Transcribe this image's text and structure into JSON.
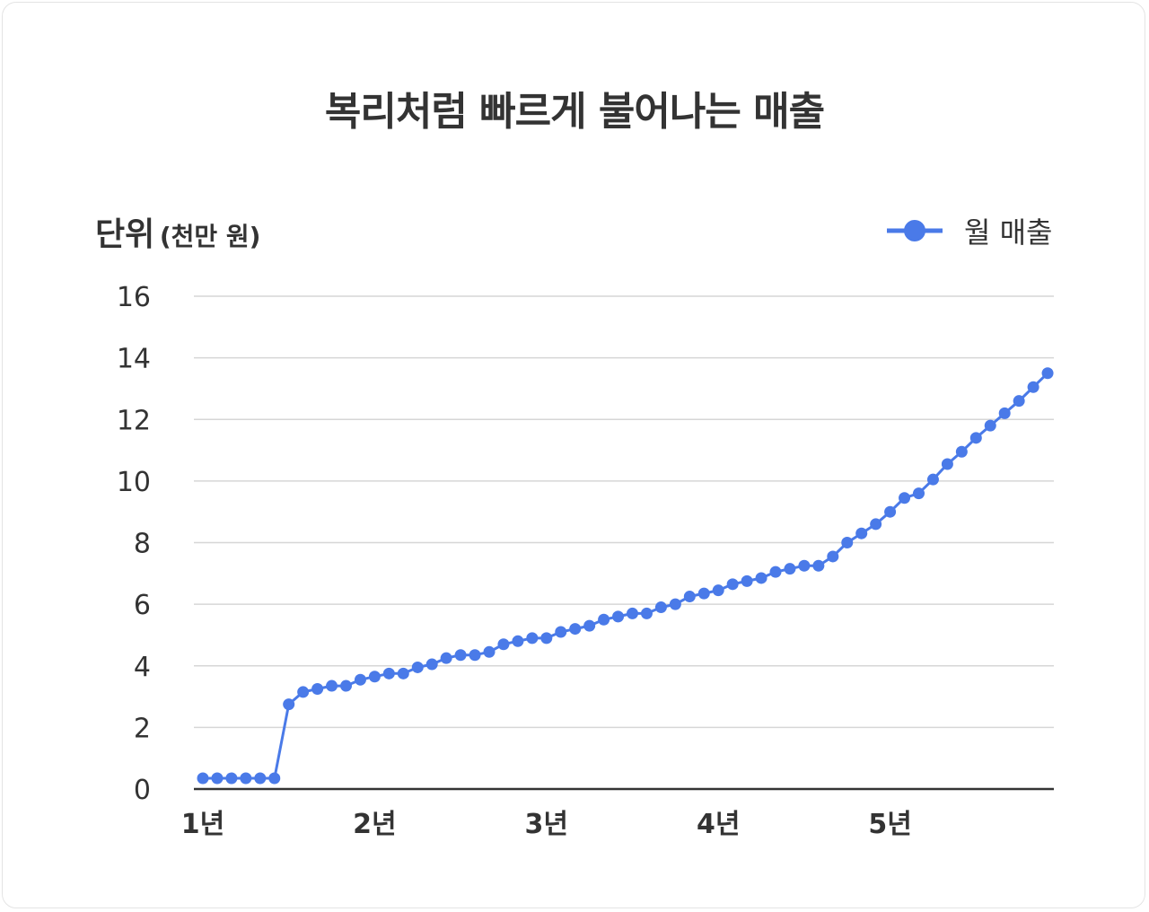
{
  "title": "복리처럼 빠르게 불어나는 매출",
  "unit_label": "단위",
  "unit_detail": "(천만 원)",
  "accent_color": "#4a7ae8",
  "chart_data": {
    "type": "line",
    "title": "복리처럼 빠르게 불어나는 매출",
    "ylabel": "단위 (천만 원)",
    "ylim": [
      0,
      16
    ],
    "yticks": [
      "0",
      "2",
      "4",
      "6",
      "8",
      "10",
      "12",
      "14",
      "16"
    ],
    "xticks": [
      {
        "label": "1년",
        "index": 0
      },
      {
        "label": "2년",
        "index": 12
      },
      {
        "label": "3년",
        "index": 24
      },
      {
        "label": "4년",
        "index": 36
      },
      {
        "label": "5년",
        "index": 48
      }
    ],
    "grid": true,
    "legend_position": "top-right",
    "series": [
      {
        "name": "월 매출",
        "color": "#4a7ae8",
        "values": [
          0.35,
          0.35,
          0.35,
          0.35,
          0.35,
          0.35,
          2.75,
          3.15,
          3.25,
          3.35,
          3.35,
          3.55,
          3.65,
          3.75,
          3.75,
          3.95,
          4.05,
          4.25,
          4.35,
          4.35,
          4.45,
          4.7,
          4.8,
          4.9,
          4.9,
          5.1,
          5.2,
          5.3,
          5.5,
          5.6,
          5.7,
          5.7,
          5.9,
          6.0,
          6.25,
          6.35,
          6.45,
          6.65,
          6.75,
          6.85,
          7.05,
          7.15,
          7.25,
          7.25,
          7.55,
          8.0,
          8.3,
          8.6,
          9.0,
          9.45,
          9.6,
          10.05,
          10.55,
          10.95,
          11.4,
          11.8,
          12.2,
          12.6,
          13.05,
          13.5
        ]
      }
    ]
  }
}
